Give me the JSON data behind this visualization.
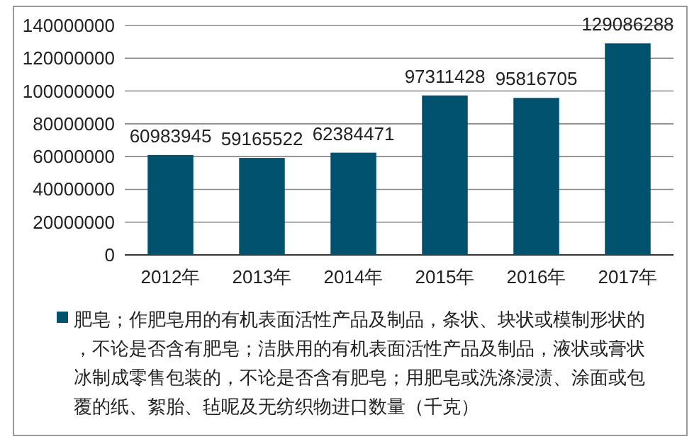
{
  "chart_data": {
    "type": "bar",
    "categories": [
      "2012年",
      "2013年",
      "2014年",
      "2015年",
      "2016年",
      "2017年"
    ],
    "series": [
      {
        "name": "肥皂；作肥皂用的有机表面活性产品及制品，条状、块状或模制形状的，不论是否含有肥皂；洁肤用的有机表面活性产品及制品，液状或膏状冰制成零售包装的，不论是否含有肥皂；用肥皂或洗涤浸渍、涂面或包覆的纸、絮胎、毡呢及无纺织物进口数量（千克）",
        "color": "#00516e",
        "values": [
          60983945,
          59165522,
          62384471,
          97311428,
          95816705,
          129086288
        ]
      }
    ],
    "ylim": [
      0,
      140000000
    ],
    "yticks": [
      0,
      20000000,
      40000000,
      60000000,
      80000000,
      100000000,
      120000000,
      140000000
    ],
    "grid": "y",
    "data_labels": true,
    "legend": "bottom"
  }
}
